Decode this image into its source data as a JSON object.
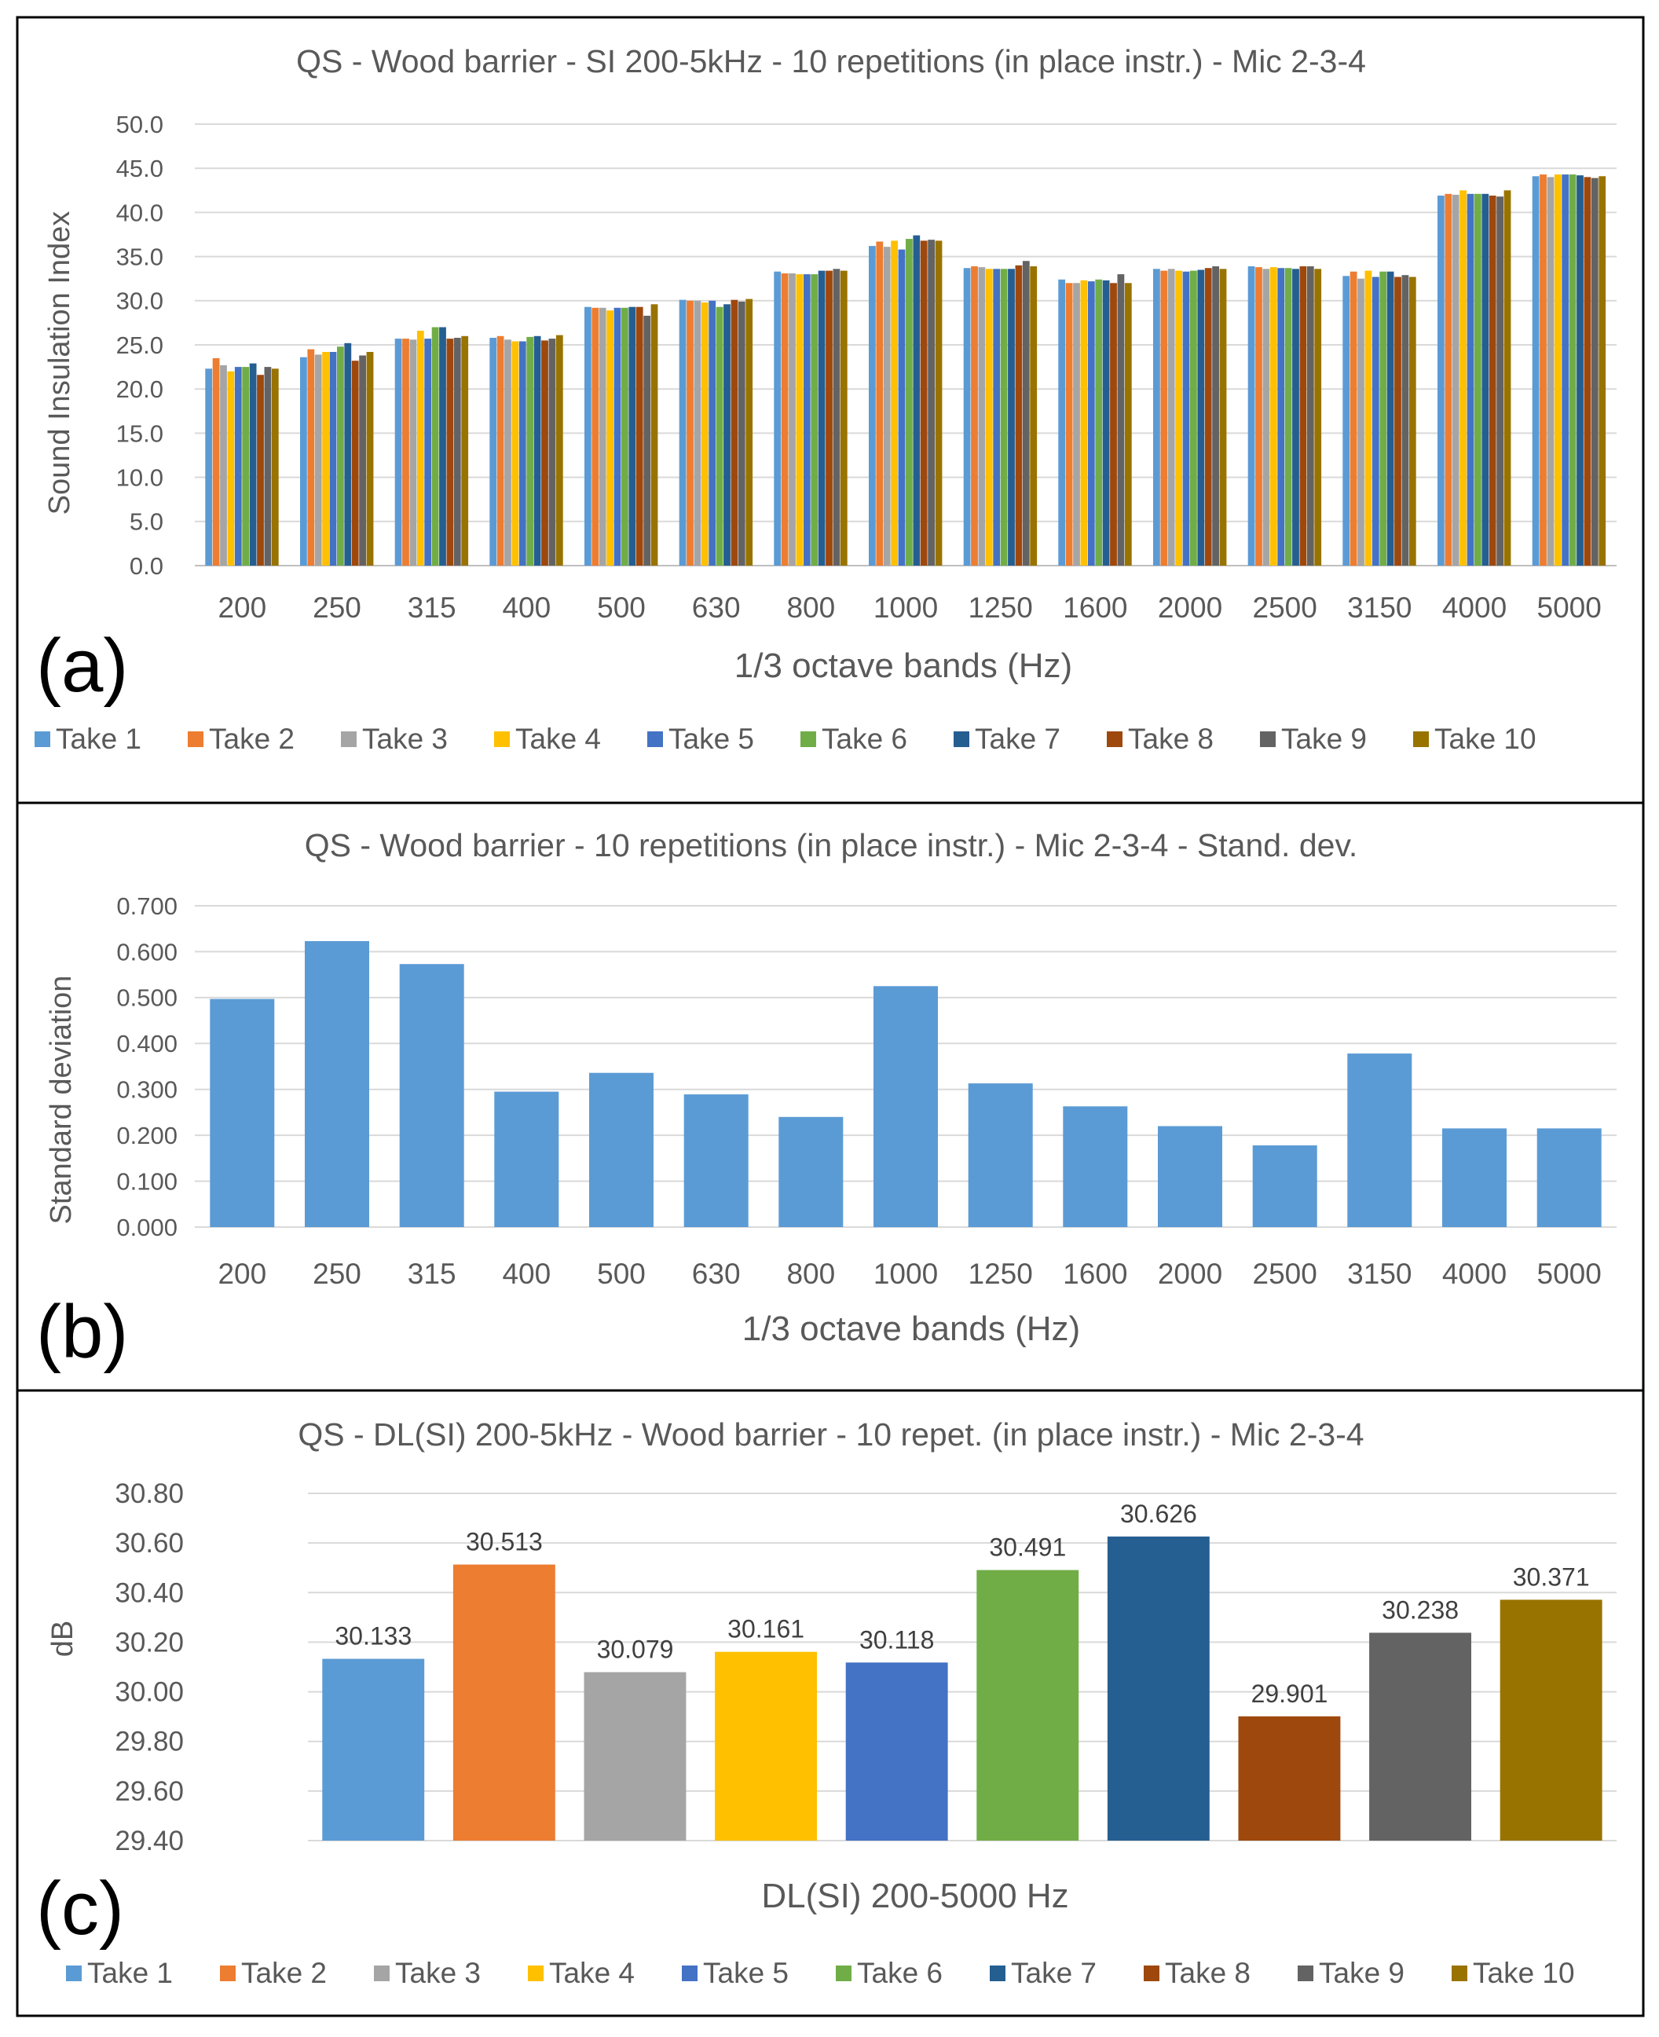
{
  "colors": {
    "take_palette": [
      "#5B9BD5",
      "#ED7D31",
      "#A5A5A5",
      "#FFC000",
      "#4472C4",
      "#70AD47",
      "#255E91",
      "#9E480E",
      "#636363",
      "#997300"
    ],
    "std_bar": "#5B9BD5",
    "grid": "#d9d9d9",
    "axis_text": "#595959",
    "border": "#000000"
  },
  "chart_data": [
    {
      "panel_label": "(a)",
      "type": "bar",
      "title": "QS - Wood barrier - SI 200-5kHz - 10 repetitions (in place instr.) - Mic 2-3-4",
      "xlabel": "1/3 octave bands (Hz)",
      "ylabel": "Sound Insulation Index",
      "ylim": [
        0,
        50
      ],
      "y_ticks": [
        "0.0",
        "5.0",
        "10.0",
        "15.0",
        "20.0",
        "25.0",
        "30.0",
        "35.0",
        "40.0",
        "45.0",
        "50.0"
      ],
      "grid": true,
      "legend_position": "bottom",
      "categories": [
        "200",
        "250",
        "315",
        "400",
        "500",
        "630",
        "800",
        "1000",
        "1250",
        "1600",
        "2000",
        "2500",
        "3150",
        "4000",
        "5000"
      ],
      "series": [
        {
          "name": "Take 1",
          "values": [
            22.3,
            23.6,
            25.7,
            25.8,
            29.3,
            30.1,
            33.3,
            36.2,
            33.7,
            32.4,
            33.6,
            33.9,
            32.8,
            41.9,
            44.1
          ]
        },
        {
          "name": "Take 2",
          "values": [
            23.5,
            24.5,
            25.7,
            26.0,
            29.2,
            30.0,
            33.1,
            36.7,
            33.9,
            32.0,
            33.4,
            33.8,
            33.3,
            42.1,
            44.3
          ]
        },
        {
          "name": "Take 3",
          "values": [
            22.7,
            23.9,
            25.6,
            25.6,
            29.2,
            30.0,
            33.1,
            36.1,
            33.8,
            32.0,
            33.6,
            33.6,
            32.5,
            42.0,
            44.0
          ]
        },
        {
          "name": "Take 4",
          "values": [
            22.0,
            24.2,
            26.6,
            25.4,
            28.9,
            29.8,
            33.0,
            36.8,
            33.6,
            32.3,
            33.4,
            33.8,
            33.4,
            42.5,
            44.3
          ]
        },
        {
          "name": "Take 5",
          "values": [
            22.5,
            24.2,
            25.7,
            25.4,
            29.2,
            30.0,
            33.0,
            35.8,
            33.6,
            32.2,
            33.3,
            33.7,
            32.7,
            42.1,
            44.3
          ]
        },
        {
          "name": "Take 6",
          "values": [
            22.5,
            24.8,
            27.0,
            25.9,
            29.2,
            29.3,
            33.0,
            37.0,
            33.6,
            32.4,
            33.4,
            33.7,
            33.3,
            42.1,
            44.3
          ]
        },
        {
          "name": "Take 7",
          "values": [
            22.9,
            25.2,
            27.0,
            26.0,
            29.3,
            29.6,
            33.4,
            37.4,
            33.6,
            32.3,
            33.5,
            33.6,
            33.3,
            42.1,
            44.2
          ]
        },
        {
          "name": "Take 8",
          "values": [
            21.6,
            23.2,
            25.7,
            25.5,
            29.3,
            30.1,
            33.4,
            36.8,
            34.0,
            32.0,
            33.7,
            33.9,
            32.7,
            41.9,
            44.0
          ]
        },
        {
          "name": "Take 9",
          "values": [
            22.5,
            23.8,
            25.8,
            25.7,
            28.3,
            29.9,
            33.6,
            36.9,
            34.5,
            33.0,
            33.9,
            33.9,
            32.9,
            41.8,
            43.9
          ]
        },
        {
          "name": "Take 10",
          "values": [
            22.3,
            24.2,
            26.0,
            26.1,
            29.6,
            30.2,
            33.4,
            36.8,
            33.9,
            32.0,
            33.6,
            33.6,
            32.7,
            42.5,
            44.1
          ]
        }
      ]
    },
    {
      "panel_label": "(b)",
      "type": "bar",
      "title": "QS - Wood barrier - 10 repetitions (in place instr.) - Mic 2-3-4 - Stand. dev.",
      "xlabel": "1/3 octave bands (Hz)",
      "ylabel": "Standard deviation",
      "ylim": [
        0,
        0.7
      ],
      "y_ticks": [
        "0.000",
        "0.100",
        "0.200",
        "0.300",
        "0.400",
        "0.500",
        "0.600",
        "0.700"
      ],
      "grid": true,
      "categories": [
        "200",
        "250",
        "315",
        "400",
        "500",
        "630",
        "800",
        "1000",
        "1250",
        "1600",
        "2000",
        "2500",
        "3150",
        "4000",
        "5000"
      ],
      "values": [
        0.497,
        0.623,
        0.573,
        0.295,
        0.336,
        0.289,
        0.24,
        0.525,
        0.313,
        0.263,
        0.22,
        0.178,
        0.378,
        0.215,
        0.215
      ]
    },
    {
      "panel_label": "(c)",
      "type": "bar",
      "title": "QS - DL(SI) 200-5kHz - Wood barrier - 10 repet. (in place instr.) - Mic 2-3-4",
      "xlabel": "DL(SI) 200-5000 Hz",
      "ylabel": "dB",
      "ylim": [
        29.4,
        30.8
      ],
      "y_ticks": [
        "29.40",
        "29.60",
        "29.80",
        "30.00",
        "30.20",
        "30.40",
        "30.60",
        "30.80"
      ],
      "grid": true,
      "legend_position": "bottom",
      "series": [
        {
          "name": "Take 1",
          "value": 30.133,
          "label": "30.133"
        },
        {
          "name": "Take 2",
          "value": 30.513,
          "label": "30.513"
        },
        {
          "name": "Take 3",
          "value": 30.079,
          "label": "30.079"
        },
        {
          "name": "Take 4",
          "value": 30.161,
          "label": "30.161"
        },
        {
          "name": "Take 5",
          "value": 30.118,
          "label": "30.118"
        },
        {
          "name": "Take 6",
          "value": 30.491,
          "label": "30.491"
        },
        {
          "name": "Take 7",
          "value": 30.626,
          "label": "30.626"
        },
        {
          "name": "Take 8",
          "value": 29.901,
          "label": "29.901"
        },
        {
          "name": "Take 9",
          "value": 30.238,
          "label": "30.238"
        },
        {
          "name": "Take 10",
          "value": 30.371,
          "label": "30.371"
        }
      ]
    }
  ]
}
